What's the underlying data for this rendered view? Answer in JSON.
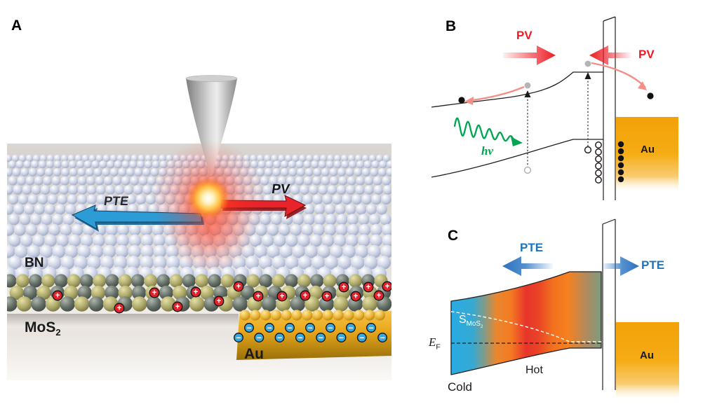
{
  "panel_a": {
    "label": "A",
    "labels": {
      "bn": "BN",
      "mos2_main": "MoS",
      "mos2_sub": "2",
      "au": "Au",
      "pte": "PTE",
      "pv": "PV"
    },
    "charges": {
      "plus_symbol": "+",
      "minus_symbol": "−",
      "plus_count": 16,
      "minus_count": 15
    },
    "colors": {
      "pte_arrow": "#2C9CD6",
      "pv_arrow": "#E7232B",
      "plus_badge": "#E0232B",
      "minus_badge": "#35A8E0",
      "glow_core": "#FFC044",
      "bn_sphere": "#C5CDE0",
      "mos2_olive": "#ACA868",
      "mos2_dark": "#626D65",
      "gold": "#E9A81C"
    }
  },
  "panel_b": {
    "label": "B",
    "labels": {
      "pv_left": "PV",
      "pv_right": "PV",
      "photon": "hν",
      "electrode": "Au"
    },
    "colors": {
      "pv_red": "#ED1C24",
      "photon_green": "#00A651",
      "transfer_pink": "#F48F88",
      "gold": "#F5A50A",
      "band_line": "#231F20"
    }
  },
  "panel_c": {
    "label": "C",
    "labels": {
      "pte_left": "PTE",
      "pte_right": "PTE",
      "seebeck_main": "S",
      "seebeck_sub_main": "MoS",
      "seebeck_sub_sub": "2",
      "fermi_main": "E",
      "fermi_sub": "F",
      "hot": "Hot",
      "cold": "Cold",
      "electrode": "Au"
    },
    "colors": {
      "pte_blue": "#2B73C1",
      "cold_cyan": "#29ABE2",
      "hot_red": "#E8342B",
      "warm_orange": "#F58220",
      "band_right_green": "#7C9D80",
      "gold": "#F5A50A"
    }
  }
}
